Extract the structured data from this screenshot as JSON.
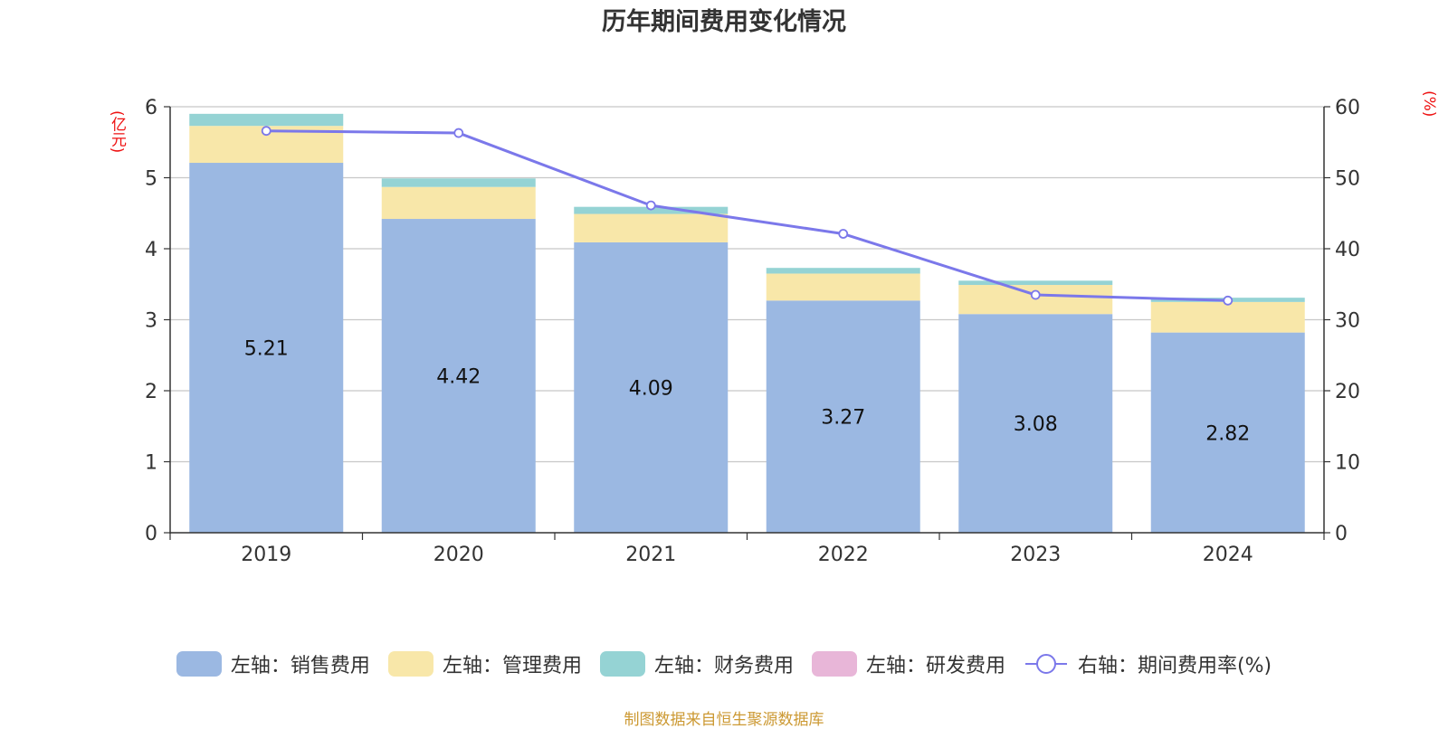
{
  "chart_data": {
    "type": "bar",
    "title": "历年期间费用变化情况",
    "categories": [
      "2019",
      "2020",
      "2021",
      "2022",
      "2023",
      "2024"
    ],
    "y_left": {
      "unit": "(亿元)",
      "range": [
        0,
        6
      ],
      "ticks": [
        0,
        1,
        2,
        3,
        4,
        5,
        6
      ]
    },
    "y_right": {
      "unit": "(%)",
      "range": [
        0,
        60
      ],
      "ticks": [
        0,
        10,
        20,
        30,
        40,
        50,
        60
      ]
    },
    "series": [
      {
        "name": "左轴：销售费用",
        "type": "bar",
        "stack": true,
        "axis": "left",
        "color": "#9bb8e2",
        "values": [
          5.21,
          4.42,
          4.09,
          3.27,
          3.08,
          2.82
        ],
        "show_labels": true
      },
      {
        "name": "左轴：管理费用",
        "type": "bar",
        "stack": true,
        "axis": "left",
        "color": "#f8e7a9",
        "values": [
          0.52,
          0.45,
          0.4,
          0.38,
          0.41,
          0.43
        ]
      },
      {
        "name": "左轴：财务费用",
        "type": "bar",
        "stack": true,
        "axis": "left",
        "color": "#95d3d4",
        "values": [
          0.17,
          0.12,
          0.1,
          0.08,
          0.06,
          0.06
        ]
      },
      {
        "name": "左轴：研发费用",
        "type": "bar",
        "stack": true,
        "axis": "left",
        "color": "#e8b6d8",
        "values": [
          0,
          0,
          0,
          0,
          0,
          0
        ]
      },
      {
        "name": "右轴：期间费用率(%)",
        "type": "line",
        "axis": "right",
        "color": "#7b78ea",
        "values": [
          56.6,
          56.3,
          46.1,
          42.1,
          33.5,
          32.7
        ]
      }
    ],
    "grid": true,
    "legend": "bottom-center"
  },
  "source": "制图数据来自恒生聚源数据库"
}
